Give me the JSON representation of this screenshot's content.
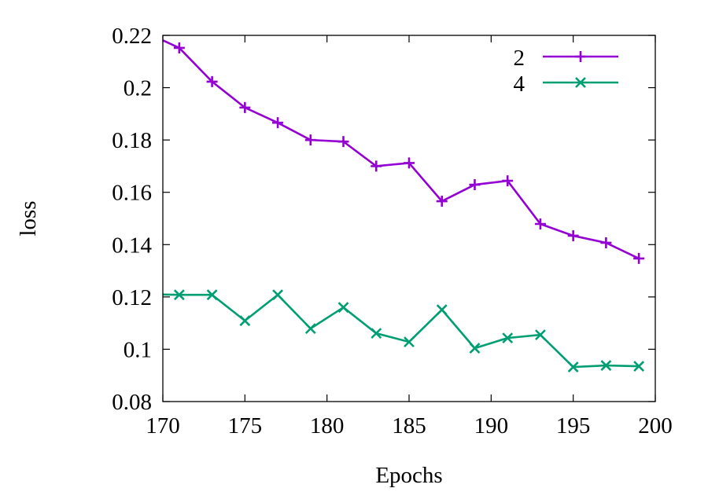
{
  "chart_data": {
    "type": "line",
    "title": "",
    "xlabel": "Epochs",
    "ylabel": "loss",
    "xlim": [
      170,
      200
    ],
    "ylim": [
      0.08,
      0.22
    ],
    "xticks": [
      "170",
      "175",
      "180",
      "185",
      "190",
      "195",
      "200"
    ],
    "yticks": [
      "0.08",
      "0.1",
      "0.12",
      "0.14",
      "0.16",
      "0.18",
      "0.2",
      "0.22"
    ],
    "grid": false,
    "legend_position": "top-right",
    "x": [
      169,
      171,
      173,
      175,
      177,
      179,
      181,
      183,
      185,
      187,
      189,
      191,
      193,
      195,
      197,
      199
    ],
    "series": [
      {
        "name": "2",
        "color": "#9400d3",
        "marker": "plus",
        "values": [
          0.221,
          0.2152,
          0.2023,
          0.1924,
          0.1866,
          0.18,
          0.1794,
          0.17,
          0.1712,
          0.1566,
          0.1629,
          0.1644,
          0.1479,
          0.1434,
          0.1407,
          0.1347
        ]
      },
      {
        "name": "4",
        "color": "#009e73",
        "marker": "cross",
        "values": [
          0.121,
          0.1208,
          0.1208,
          0.1109,
          0.1208,
          0.1079,
          0.116,
          0.1061,
          0.1028,
          0.1151,
          0.1004,
          0.1043,
          0.1055,
          0.0932,
          0.0938,
          0.0935
        ]
      }
    ]
  }
}
